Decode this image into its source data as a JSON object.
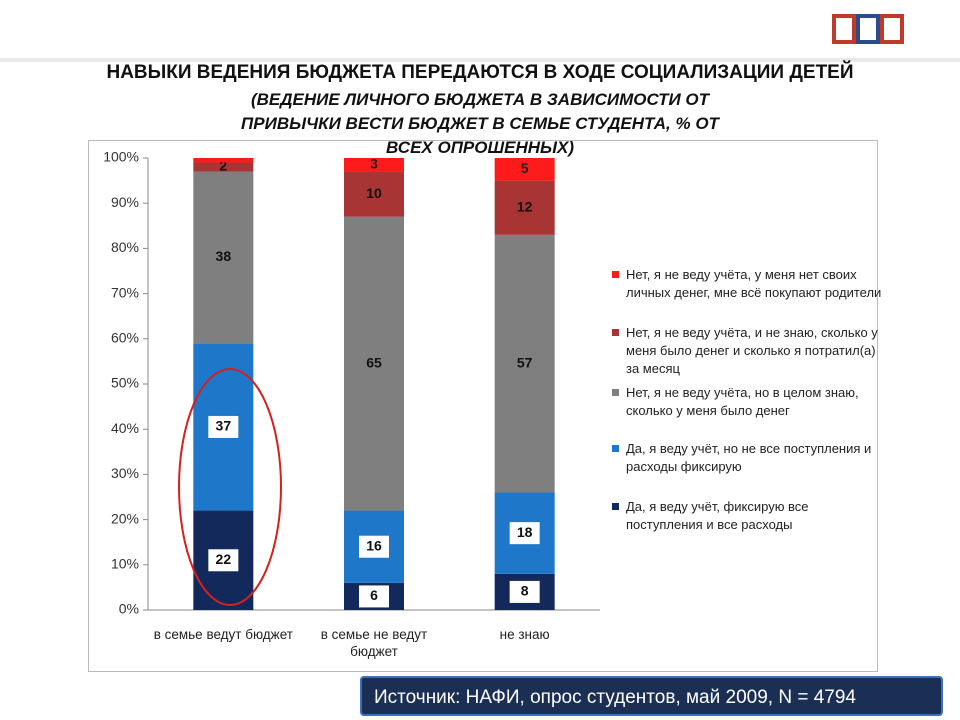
{
  "chart_data": {
    "type": "stacked_bar",
    "title": "НАВЫКИ ВЕДЕНИЯ БЮДЖЕТА ПЕРЕДАЮТСЯ В ХОДЕ СОЦИАЛИЗАЦИИ ДЕТЕЙ",
    "subtitle": "(ВЕДЕНИЕ ЛИЧНОГО БЮДЖЕТА В ЗАВИСИМОСТИ ОТ ПРИВЫЧКИ ВЕСТИ БЮДЖЕТ В СЕМЬЕ СТУДЕНТА, % ОТ ВСЕХ ОПРОШЕННЫХ)",
    "categories": [
      "в семье ведут бюджет",
      "в семье не ведут бюджет",
      "не знаю"
    ],
    "series": [
      {
        "name": "Да, я веду учёт, фиксирую все поступления и все расходы",
        "color": "#13295c",
        "values": [
          22,
          6,
          8
        ]
      },
      {
        "name": "Да, я веду учёт, но не все поступления и расходы фиксирую",
        "color": "#1f77c9",
        "values": [
          37,
          16,
          18
        ]
      },
      {
        "name": "Нет, я не веду учёта, но в целом знаю, сколько у меня было денег",
        "color": "#7f7f7f",
        "values": [
          38,
          65,
          57
        ]
      },
      {
        "name": "Нет, я не веду учёта, и не знаю, сколько у меня было денег и сколько я потратил(а) за месяц",
        "color": "#a93434",
        "values": [
          2,
          10,
          12
        ]
      },
      {
        "name": "Нет, я не веду учёта, у меня нет своих личных денег, мне всё покупают родители",
        "color": "#ff1b1b",
        "values": [
          1,
          3,
          5
        ],
        "value_labels": [
          null,
          "3",
          "5"
        ]
      }
    ],
    "ylim": [
      0,
      100
    ],
    "yticks": [
      {
        "value": 0,
        "label": "0%"
      },
      {
        "value": 10,
        "label": "10%"
      },
      {
        "value": 20,
        "label": "20%"
      },
      {
        "value": 30,
        "label": "30%"
      },
      {
        "value": 40,
        "label": "40%"
      },
      {
        "value": 50,
        "label": "50%"
      },
      {
        "value": 60,
        "label": "60%"
      },
      {
        "value": 70,
        "label": "70%"
      },
      {
        "value": 80,
        "label": "80%"
      },
      {
        "value": 90,
        "label": "90%"
      },
      {
        "value": 100,
        "label": "100%"
      }
    ],
    "legend": "right",
    "source": "Источник: НАФИ, опрос студентов, май 2009, N = 4794"
  }
}
